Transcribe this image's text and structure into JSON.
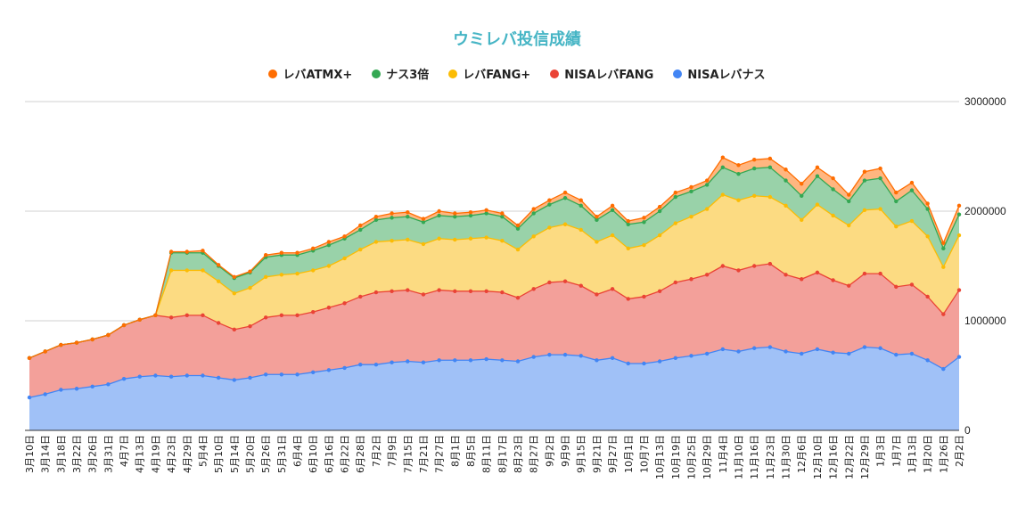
{
  "chart_data": {
    "type": "area",
    "stacked": true,
    "title": "ウミレバ投信成績",
    "legend_position": "top",
    "grid": true,
    "ylim": [
      0,
      3000000
    ],
    "y_ticks": [
      "0",
      "1000000",
      "2000000",
      "3000000"
    ],
    "categories": [
      "3月10日",
      "3月14日",
      "3月18日",
      "3月22日",
      "3月26日",
      "3月31日",
      "4月7日",
      "4月13日",
      "4月19日",
      "4月23日",
      "4月29日",
      "5月4日",
      "5月10日",
      "5月14日",
      "5月20日",
      "5月26日",
      "5月31日",
      "6月4日",
      "6月10日",
      "6月16日",
      "6月22日",
      "6月28日",
      "7月2日",
      "7月9日",
      "7月15日",
      "7月21日",
      "7月27日",
      "8月1日",
      "8月5日",
      "8月11日",
      "8月17日",
      "8月23日",
      "8月27日",
      "9月2日",
      "9月9日",
      "9月15日",
      "9月21日",
      "9月27日",
      "10月1日",
      "10月7日",
      "10月13日",
      "10月19日",
      "10月25日",
      "10月29日",
      "11月4日",
      "11月10日",
      "11月16日",
      "11月23日",
      "11月30日",
      "12月6日",
      "12月10日",
      "12月16日",
      "12月22日",
      "12月29日",
      "1月3日",
      "1月7日",
      "1月13日",
      "1月20日",
      "1月26日",
      "2月2日"
    ],
    "series": [
      {
        "name": "NISAレバナス",
        "color": "#4285f4",
        "fill": "#a0c1f7",
        "values": [
          300000,
          330000,
          370000,
          380000,
          400000,
          420000,
          470000,
          490000,
          500000,
          490000,
          500000,
          500000,
          480000,
          460000,
          480000,
          510000,
          510000,
          510000,
          530000,
          550000,
          570000,
          600000,
          600000,
          620000,
          630000,
          620000,
          640000,
          640000,
          640000,
          650000,
          640000,
          630000,
          670000,
          690000,
          690000,
          680000,
          640000,
          660000,
          610000,
          610000,
          630000,
          660000,
          680000,
          700000,
          740000,
          720000,
          750000,
          760000,
          720000,
          700000,
          740000,
          710000,
          700000,
          760000,
          750000,
          690000,
          700000,
          640000,
          560000,
          670000
        ]
      },
      {
        "name": "NISAレバFANG",
        "color": "#ea4335",
        "fill": "#f3a09a",
        "values": [
          360000,
          390000,
          410000,
          420000,
          430000,
          450000,
          490000,
          520000,
          550000,
          540000,
          550000,
          550000,
          500000,
          460000,
          470000,
          520000,
          540000,
          540000,
          550000,
          570000,
          590000,
          620000,
          660000,
          650000,
          650000,
          620000,
          640000,
          630000,
          630000,
          620000,
          620000,
          580000,
          620000,
          660000,
          670000,
          640000,
          600000,
          630000,
          590000,
          610000,
          640000,
          690000,
          700000,
          720000,
          760000,
          740000,
          750000,
          760000,
          700000,
          680000,
          700000,
          660000,
          620000,
          670000,
          680000,
          620000,
          630000,
          580000,
          500000,
          610000
        ]
      },
      {
        "name": "レバFANG+",
        "color": "#fbbc04",
        "fill": "#fcdb82",
        "values": [
          0,
          0,
          0,
          0,
          0,
          0,
          0,
          0,
          0,
          430000,
          410000,
          410000,
          380000,
          330000,
          350000,
          370000,
          370000,
          380000,
          380000,
          380000,
          410000,
          430000,
          460000,
          460000,
          460000,
          460000,
          470000,
          470000,
          480000,
          490000,
          470000,
          440000,
          480000,
          500000,
          520000,
          510000,
          480000,
          490000,
          460000,
          470000,
          510000,
          540000,
          570000,
          600000,
          650000,
          640000,
          640000,
          610000,
          630000,
          540000,
          620000,
          590000,
          550000,
          580000,
          590000,
          550000,
          580000,
          550000,
          430000,
          500000
        ]
      },
      {
        "name": "ナス3倍",
        "color": "#34a853",
        "fill": "#99d2a9",
        "values": [
          0,
          0,
          0,
          0,
          0,
          0,
          0,
          0,
          0,
          160000,
          160000,
          160000,
          140000,
          140000,
          140000,
          180000,
          180000,
          170000,
          180000,
          190000,
          180000,
          180000,
          200000,
          210000,
          210000,
          200000,
          210000,
          210000,
          210000,
          220000,
          220000,
          190000,
          210000,
          210000,
          240000,
          220000,
          200000,
          230000,
          220000,
          210000,
          220000,
          240000,
          230000,
          220000,
          250000,
          240000,
          250000,
          270000,
          230000,
          220000,
          260000,
          240000,
          220000,
          270000,
          280000,
          230000,
          280000,
          250000,
          170000,
          190000
        ]
      },
      {
        "name": "レバATMX+",
        "color": "#ff6d01",
        "fill": "#ffb680",
        "values": [
          0,
          0,
          0,
          0,
          0,
          0,
          0,
          0,
          0,
          10000,
          10000,
          20000,
          10000,
          10000,
          10000,
          20000,
          20000,
          20000,
          20000,
          30000,
          20000,
          40000,
          30000,
          40000,
          40000,
          30000,
          40000,
          30000,
          30000,
          30000,
          30000,
          30000,
          40000,
          40000,
          50000,
          50000,
          30000,
          40000,
          30000,
          40000,
          40000,
          40000,
          40000,
          40000,
          90000,
          80000,
          80000,
          80000,
          100000,
          110000,
          80000,
          100000,
          60000,
          80000,
          90000,
          80000,
          70000,
          50000,
          50000,
          80000
        ]
      }
    ]
  }
}
